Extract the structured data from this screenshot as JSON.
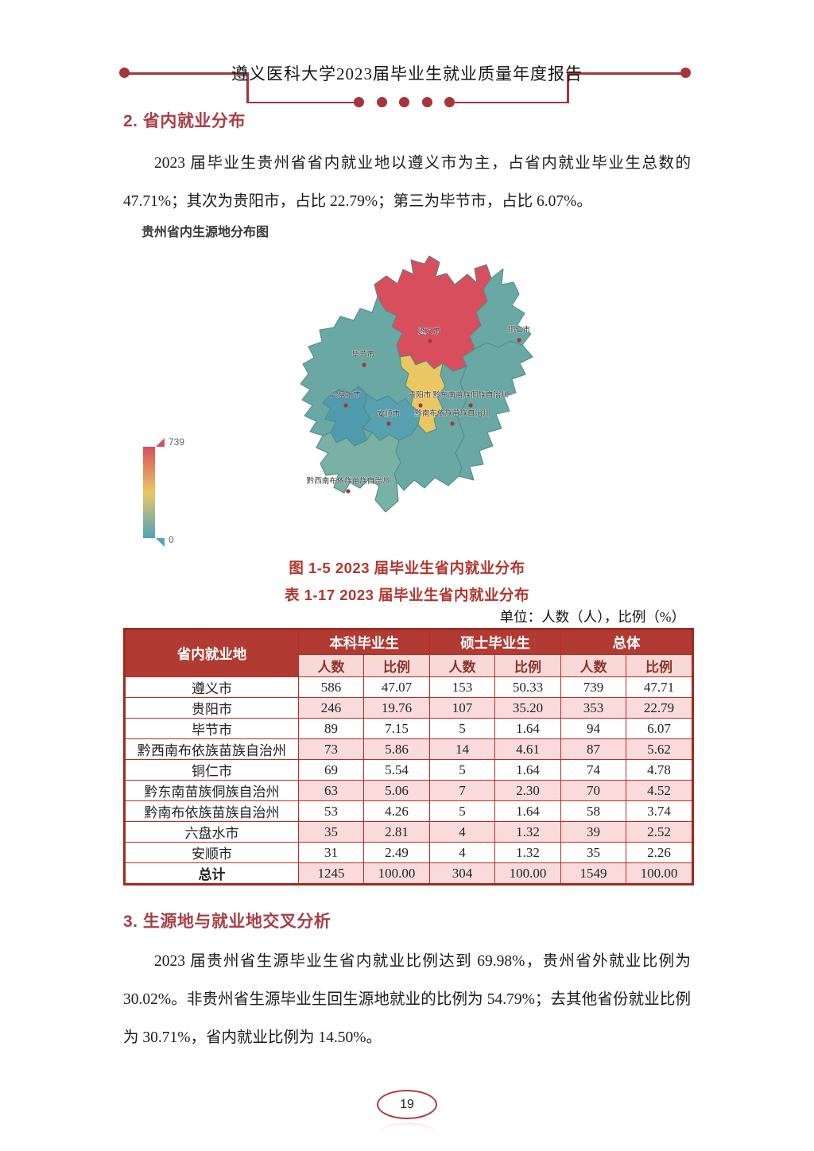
{
  "header": {
    "title": "遵义医科大学2023届毕业生就业质量年度报告"
  },
  "sections": {
    "s2": {
      "heading": "2. 省内就业分布",
      "paragraph": "2023 届毕业生贵州省省内就业地以遵义市为主，占省内就业毕业生总数的 47.71%；其次为贵阳市，占比 22.79%；第三为毕节市，占比 6.07%。"
    },
    "s3": {
      "heading": "3. 生源地与就业地交叉分析",
      "paragraph": "2023 届贵州省生源毕业生省内就业比例达到 69.98%，贵州省外就业比例为 30.02%。非贵州省生源毕业生回生源地就业的比例为 54.79%；去其他省份就业比例为 30.71%，省内就业比例为 14.50%。"
    }
  },
  "map": {
    "title": "贵州省内生源地分布图",
    "base_color": "#69a8a3",
    "border_color": "#4e8a88",
    "marker_color": "#a03b36",
    "legend": {
      "max": "739",
      "min": "0",
      "top_color": "#d94e5d",
      "mid_color": "#eac763",
      "bottom_color": "#50a3ba"
    },
    "regions": [
      {
        "key": "zunyi",
        "name": "遵义市",
        "value": 739,
        "color": "#d94e5d"
      },
      {
        "key": "tongren",
        "name": "铜仁市",
        "value": 74,
        "color": "#69a8a3"
      },
      {
        "key": "bijie",
        "name": "毕节市",
        "value": 94,
        "color": "#69a8a3"
      },
      {
        "key": "liupanshui",
        "name": "六盘水市",
        "value": 39,
        "color": "#4f9bad"
      },
      {
        "key": "guiyang",
        "name": "贵阳市",
        "value": 353,
        "color": "#eac763"
      },
      {
        "key": "qiandongnan",
        "name": "黔东南苗族侗族自治州",
        "value": 70,
        "color": "#69a8a3"
      },
      {
        "key": "anshun",
        "name": "安顺市",
        "value": 35,
        "color": "#57a1b0"
      },
      {
        "key": "qiannan",
        "name": "黔南布依族苗族自治州",
        "value": 58,
        "color": "#69a8a3"
      },
      {
        "key": "qianxinan",
        "name": "黔西南布依族苗族自治州",
        "value": 87,
        "color": "#79b2a4"
      }
    ]
  },
  "chart_data": {
    "type": "heatmap",
    "subtype": "choropleth-map",
    "title": "贵州省内生源地分布图",
    "categories": [
      "遵义市",
      "贵阳市",
      "毕节市",
      "黔西南布依族苗族自治州",
      "铜仁市",
      "黔东南苗族侗族自治州",
      "黔南布依族苗族自治州",
      "六盘水市",
      "安顺市"
    ],
    "values": [
      739,
      353,
      94,
      87,
      74,
      70,
      58,
      39,
      35
    ],
    "value_range": [
      0,
      739
    ],
    "legend_position": "bottom-left",
    "legend_gradient": [
      "#50a3ba",
      "#eac763",
      "#d94e5d"
    ]
  },
  "figure_caption": "图 1-5  2023 届毕业生省内就业分布",
  "table_caption": "表 1-17  2023 届毕业生省内就业分布",
  "unit_note": "单位：人数（人），比例（%）",
  "table": {
    "corner_header": "省内就业地",
    "col_groups": [
      "本科毕业生",
      "硕士毕业生",
      "总体"
    ],
    "sub_headers": [
      "人数",
      "比例"
    ],
    "rows": [
      {
        "name": "遵义市",
        "values": [
          "586",
          "47.07",
          "153",
          "50.33",
          "739",
          "47.71"
        ]
      },
      {
        "name": "贵阳市",
        "values": [
          "246",
          "19.76",
          "107",
          "35.20",
          "353",
          "22.79"
        ]
      },
      {
        "name": "毕节市",
        "values": [
          "89",
          "7.15",
          "5",
          "1.64",
          "94",
          "6.07"
        ]
      },
      {
        "name": "黔西南布依族苗族自治州",
        "values": [
          "73",
          "5.86",
          "14",
          "4.61",
          "87",
          "5.62"
        ]
      },
      {
        "name": "铜仁市",
        "values": [
          "69",
          "5.54",
          "5",
          "1.64",
          "74",
          "4.78"
        ]
      },
      {
        "name": "黔东南苗族侗族自治州",
        "values": [
          "63",
          "5.06",
          "7",
          "2.30",
          "70",
          "4.52"
        ]
      },
      {
        "name": "黔南布依族苗族自治州",
        "values": [
          "53",
          "4.26",
          "5",
          "1.64",
          "58",
          "3.74"
        ]
      },
      {
        "name": "六盘水市",
        "values": [
          "35",
          "2.81",
          "4",
          "1.32",
          "39",
          "2.52"
        ]
      },
      {
        "name": "安顺市",
        "values": [
          "31",
          "2.49",
          "4",
          "1.32",
          "35",
          "2.26"
        ]
      },
      {
        "name": "总计",
        "values": [
          "1245",
          "100.00",
          "304",
          "100.00",
          "1549",
          "100.00"
        ]
      }
    ]
  },
  "footer": {
    "page_number": "19"
  },
  "colors": {
    "ornament_red": "#a6343c",
    "heading_red": "#a83e46",
    "caption_red": "#b2362e",
    "table_header_bg": "#b13a33",
    "table_subheader_bg": "#f7dad7",
    "table_stripe_pink": "#fadbdb",
    "table_border_red": "#bb2c22"
  }
}
